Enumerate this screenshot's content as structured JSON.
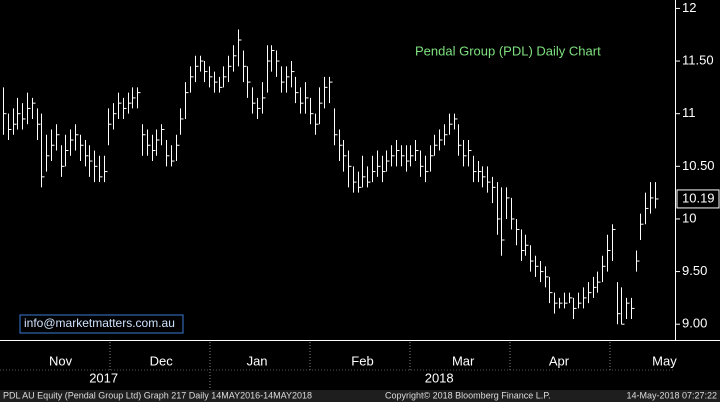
{
  "chart_data": {
    "type": "ohlc",
    "title": "Pendal Group (PDL) Daily Chart",
    "watermark": "info@marketmatters.com.au",
    "footer_left": "PDL AU Equity (Pendal Group Ltd) Graph 217  Daily 14MAY2016-14MAY2018",
    "footer_center": "Copyright© 2018 Bloomberg Finance L.P.",
    "footer_right": "14-May-2018 07:27:22",
    "color": "#ffffff",
    "title_color": "#7ee07e",
    "xlim": [
      -0.63,
      140.2
    ],
    "xticks": [
      {
        "value": 12,
        "label": "Nov"
      },
      {
        "value": 33,
        "label": "Dec"
      },
      {
        "value": 53,
        "label": "Jan"
      },
      {
        "value": 75,
        "label": "Feb"
      },
      {
        "value": 96,
        "label": "Mar"
      },
      {
        "value": 116,
        "label": "Apr"
      },
      {
        "value": 138,
        "label": "May"
      }
    ],
    "years": [
      {
        "value": 21,
        "label": "2017"
      },
      {
        "value": 91,
        "label": "2018"
      }
    ],
    "ylim": [
      8.85,
      12.08
    ],
    "yticks": [
      {
        "value": 9,
        "label": "9.00"
      },
      {
        "value": 9.5,
        "label": "9.50"
      },
      10,
      {
        "value": 10.5,
        "label": "10.50"
      },
      11,
      {
        "value": 11.5,
        "label": "11.50"
      },
      12
    ],
    "ytick_labels_fix": null,
    "high": [
      11.25,
      11.0,
      11.05,
      11.15,
      11.1,
      11.2,
      11.15,
      11.05,
      11.0,
      10.8,
      10.85,
      10.9,
      10.7,
      10.8,
      10.85,
      10.9,
      10.8,
      10.75,
      10.7,
      10.65,
      10.6,
      10.6,
      11.05,
      11.1,
      11.2,
      11.15,
      11.2,
      11.25,
      11.25,
      10.9,
      10.85,
      10.8,
      10.85,
      10.9,
      10.75,
      10.7,
      10.8,
      11.05,
      11.3,
      11.45,
      11.55,
      11.55,
      11.5,
      11.45,
      11.4,
      11.35,
      11.45,
      11.55,
      11.65,
      11.8,
      11.6,
      11.45,
      11.25,
      11.15,
      11.3,
      11.65,
      11.65,
      11.6,
      11.45,
      11.45,
      11.5,
      11.35,
      11.25,
      11.3,
      11.15,
      11.0,
      11.25,
      11.35,
      11.35,
      11.05,
      10.85,
      10.75,
      10.65,
      10.5,
      10.45,
      10.6,
      10.5,
      10.6,
      10.65,
      10.6,
      10.65,
      10.7,
      10.75,
      10.7,
      10.7,
      10.7,
      10.75,
      10.65,
      10.6,
      10.7,
      10.8,
      10.85,
      10.9,
      11.0,
      11.0,
      10.9,
      10.75,
      10.75,
      10.6,
      10.55,
      10.5,
      10.5,
      10.4,
      10.35,
      10.3,
      10.3,
      10.2,
      10.0,
      9.9,
      9.85,
      9.75,
      9.65,
      9.6,
      9.55,
      9.45,
      9.3,
      9.25,
      9.3,
      9.3,
      9.25,
      9.3,
      9.35,
      9.4,
      9.45,
      9.5,
      9.65,
      9.85,
      9.95,
      9.4,
      9.35,
      9.25,
      9.25,
      9.7,
      10.05,
      10.25,
      10.35,
      10.35
    ],
    "low": [
      10.8,
      10.75,
      10.8,
      10.85,
      10.85,
      10.9,
      10.95,
      10.75,
      10.3,
      10.45,
      10.55,
      10.65,
      10.4,
      10.5,
      10.6,
      10.65,
      10.55,
      10.5,
      10.4,
      10.35,
      10.35,
      10.35,
      10.7,
      10.85,
      10.95,
      10.95,
      11.0,
      11.05,
      11.05,
      10.6,
      10.6,
      10.55,
      10.6,
      10.7,
      10.5,
      10.5,
      10.55,
      10.8,
      10.95,
      11.2,
      11.3,
      11.4,
      11.3,
      11.25,
      11.2,
      11.2,
      11.25,
      11.3,
      11.4,
      11.45,
      11.3,
      11.15,
      11.0,
      10.95,
      11.0,
      11.2,
      11.4,
      11.35,
      11.2,
      11.2,
      11.25,
      11.1,
      11.0,
      11.0,
      10.9,
      10.8,
      10.9,
      11.05,
      11.1,
      10.7,
      10.55,
      10.45,
      10.3,
      10.25,
      10.25,
      10.3,
      10.3,
      10.35,
      10.4,
      10.35,
      10.45,
      10.5,
      10.5,
      10.5,
      10.45,
      10.5,
      10.55,
      10.4,
      10.35,
      10.45,
      10.6,
      10.65,
      10.7,
      10.8,
      10.85,
      10.6,
      10.5,
      10.5,
      10.35,
      10.35,
      10.3,
      10.25,
      10.15,
      9.85,
      9.65,
      10.0,
      9.9,
      9.75,
      9.6,
      9.65,
      9.5,
      9.45,
      9.4,
      9.35,
      9.2,
      9.1,
      9.15,
      9.15,
      9.2,
      9.05,
      9.15,
      9.15,
      9.2,
      9.25,
      9.3,
      9.4,
      9.5,
      9.6,
      9.0,
      9.0,
      9.05,
      9.05,
      9.5,
      9.8,
      9.95,
      10.05,
      10.1
    ],
    "close": [
      11.0,
      10.85,
      10.9,
      11.0,
      10.95,
      11.05,
      11.1,
      10.9,
      10.4,
      10.6,
      10.7,
      10.8,
      10.5,
      10.65,
      10.75,
      10.8,
      10.7,
      10.6,
      10.55,
      10.5,
      10.4,
      10.45,
      10.9,
      11.0,
      11.1,
      11.05,
      11.1,
      11.15,
      11.2,
      10.8,
      10.7,
      10.65,
      10.75,
      10.85,
      10.6,
      10.55,
      10.7,
      10.95,
      11.2,
      11.35,
      11.45,
      11.5,
      11.4,
      11.35,
      11.3,
      11.25,
      11.35,
      11.45,
      11.55,
      11.7,
      11.45,
      11.3,
      11.1,
      11.05,
      11.15,
      11.5,
      11.6,
      11.5,
      11.3,
      11.35,
      11.4,
      11.2,
      11.1,
      11.15,
      11.0,
      10.9,
      11.1,
      11.25,
      11.3,
      10.8,
      10.7,
      10.6,
      10.5,
      10.35,
      10.3,
      10.4,
      10.35,
      10.45,
      10.5,
      10.45,
      10.55,
      10.6,
      10.65,
      10.6,
      10.55,
      10.6,
      10.65,
      10.5,
      10.45,
      10.6,
      10.7,
      10.75,
      10.8,
      10.9,
      10.95,
      10.7,
      10.6,
      10.65,
      10.45,
      10.45,
      10.4,
      10.35,
      10.3,
      10.0,
      9.8,
      10.2,
      10.0,
      9.9,
      9.7,
      9.75,
      9.6,
      9.55,
      9.5,
      9.45,
      9.3,
      9.2,
      9.2,
      9.2,
      9.25,
      9.15,
      9.2,
      9.25,
      9.3,
      9.35,
      9.4,
      9.55,
      9.7,
      9.9,
      9.1,
      9.0,
      9.2,
      9.15,
      9.6,
      9.95,
      10.1,
      10.2,
      10.19
    ]
  }
}
